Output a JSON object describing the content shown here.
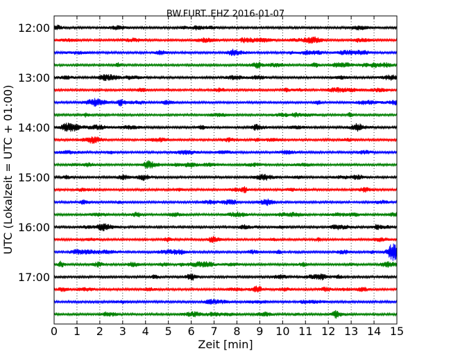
{
  "chart_data": {
    "type": "line",
    "title": "BW.FURT..EHZ 2016-01-07",
    "xlabel": "Zeit  [min]",
    "ylabel": "UTC (Lokalzeit = UTC + 01:00)",
    "x_ticks": [
      "0",
      "1",
      "2",
      "3",
      "4",
      "5",
      "6",
      "7",
      "8",
      "9",
      "10",
      "11",
      "12",
      "13",
      "14",
      "15"
    ],
    "xlim": [
      0,
      15
    ],
    "y_tick_labels": [
      "12:00",
      "13:00",
      "14:00",
      "15:00",
      "16:00",
      "17:00"
    ],
    "trace_interval_min": 15,
    "start_time": "12:00",
    "trace_count": 24,
    "trace_colors": [
      "#000000",
      "#ff0000",
      "#0000ff",
      "#008000"
    ],
    "grid": "vertical dotted",
    "notable_events": [
      {
        "trace": 18,
        "at_min": 14.85,
        "note": "large amplitude burst"
      },
      {
        "trace": 19,
        "at_min": 0.3,
        "note": "burst at start"
      },
      {
        "trace": 6,
        "at_min": 2.9,
        "note": "spike"
      },
      {
        "trace": 17,
        "at_min": 6.9,
        "note": "spike"
      }
    ]
  }
}
